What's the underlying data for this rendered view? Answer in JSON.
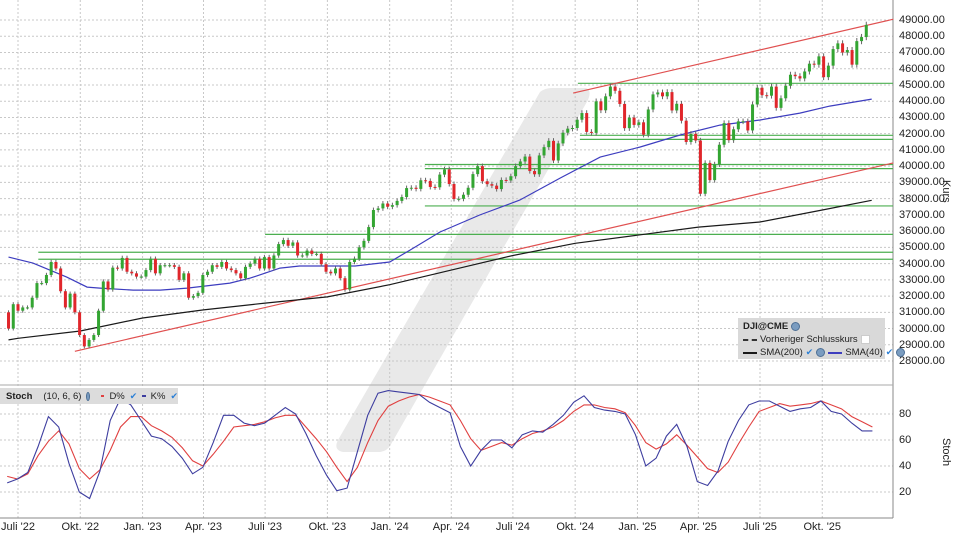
{
  "price_panel": {
    "axis_title": "Kurs",
    "legend": {
      "symbol": "DJI@CME",
      "prev_close_label": "Vorheriger Schlusskurs",
      "sma200_label": "SMA(200)",
      "sma40_label": "SMA(40)"
    }
  },
  "stoch_panel": {
    "title": "Stoch",
    "params": "(10, 6, 6)",
    "d_label": "D%",
    "k_label": "K%",
    "axis_title": "Stoch"
  },
  "colors": {
    "up": "#33a532",
    "down": "#e0262b",
    "wick": "#666666",
    "sma200": "#1a1a1a",
    "sma40": "#3d3dbf",
    "trendline": "#e05050",
    "level": "#4caf50",
    "stoch_k": "#3d3d9f",
    "stoch_d": "#e04040"
  },
  "chart_data": [
    {
      "type": "candlestick",
      "title": "DJI@CME",
      "ylabel": "Kurs",
      "interval": "weekly",
      "first_week": "2022-06-17",
      "start_open": 31000,
      "ylim": [
        26800,
        49600
      ],
      "yticks": [
        "49000.00",
        "48000.00",
        "47000.00",
        "46000.00",
        "45000.00",
        "44000.00",
        "43000.00",
        "42000.00",
        "41000.00",
        "40000.00",
        "39000.00",
        "38000.00",
        "37000.00",
        "36000.00",
        "35000.00",
        "34000.00",
        "33000.00",
        "32000.00",
        "31000.00",
        "30000.00",
        "29000.00",
        "28000.00"
      ],
      "grid": true,
      "closes": [
        30000,
        31500,
        31100,
        31300,
        31300,
        31900,
        32800,
        32800,
        33300,
        34100,
        33700,
        32300,
        31300,
        32150,
        31000,
        29600,
        28900,
        29300,
        29600,
        31100,
        32900,
        32400,
        33750,
        33700,
        34350,
        33500,
        33400,
        33200,
        33200,
        33600,
        34300,
        33400,
        33900,
        33900,
        33900,
        33800,
        33000,
        33400,
        31900,
        32000,
        32200,
        33300,
        33500,
        33900,
        33800,
        34100,
        33700,
        33600,
        33400,
        33100,
        33800,
        34000,
        34300,
        33700,
        34400,
        33700,
        34500,
        35200,
        35450,
        35100,
        35300,
        34500,
        34500,
        34800,
        34600,
        34600,
        33960,
        33500,
        33400,
        33700,
        33100,
        32400,
        34100,
        34300,
        35000,
        35400,
        36250,
        37300,
        37400,
        37700,
        37500,
        37600,
        37860,
        38100,
        38650,
        38670,
        38600,
        39130,
        39090,
        38720,
        38700,
        39480,
        39800,
        38900,
        37980,
        37990,
        38240,
        38670,
        39510,
        40000,
        39070,
        38890,
        38800,
        38590,
        39150,
        39120,
        39380,
        40000,
        40290,
        40590,
        39700,
        39500,
        40660,
        41170,
        41560,
        40350,
        41400,
        42060,
        42310,
        42350,
        42860,
        43270,
        42110,
        42050,
        43990,
        43440,
        44300,
        44900,
        44640,
        43830,
        42340,
        42990,
        42540,
        42700,
        41940,
        43490,
        44420,
        44540,
        44300,
        44560,
        43430,
        43840,
        42800,
        41490,
        41990,
        41580,
        38300,
        40200,
        39140,
        40110,
        41320,
        42650,
        41600,
        42270,
        42760,
        42760,
        42200,
        43800,
        44830,
        44370,
        44340,
        44900,
        43590,
        44180,
        44950,
        45630,
        45540,
        45400,
        45830,
        46310,
        46250,
        46760,
        45480,
        46190,
        47210,
        47560,
        47000,
        47150,
        46250,
        47700,
        47950,
        48700
      ],
      "sma200": [
        [
          "2022-06-17",
          29300
        ],
        [
          "2022-07-01",
          29400
        ],
        [
          "2022-10-01",
          29850
        ],
        [
          "2023-01-01",
          30650
        ],
        [
          "2023-04-01",
          31150
        ],
        [
          "2023-07-01",
          31570
        ],
        [
          "2023-10-01",
          31950
        ],
        [
          "2024-01-01",
          32700
        ],
        [
          "2024-04-01",
          33600
        ],
        [
          "2024-07-01",
          34500
        ],
        [
          "2024-10-01",
          35250
        ],
        [
          "2025-01-01",
          35750
        ],
        [
          "2025-04-01",
          36250
        ],
        [
          "2025-07-01",
          36560
        ],
        [
          "2025-10-01",
          37300
        ],
        [
          "2025-12-13",
          37900
        ]
      ],
      "sma40": [
        [
          "2022-06-17",
          34400
        ],
        [
          "2022-07-23",
          34030
        ],
        [
          "2022-08-17",
          33600
        ],
        [
          "2022-09-11",
          33170
        ],
        [
          "2022-10-11",
          32550
        ],
        [
          "2022-10-30",
          32490
        ],
        [
          "2022-12-18",
          32370
        ],
        [
          "2023-01-27",
          32370
        ],
        [
          "2023-03-08",
          32490
        ],
        [
          "2023-05-10",
          32800
        ],
        [
          "2023-06-09",
          33110
        ],
        [
          "2023-07-23",
          33720
        ],
        [
          "2023-08-21",
          33850
        ],
        [
          "2023-11-11",
          33850
        ],
        [
          "2024-01-01",
          34100
        ],
        [
          "2024-01-31",
          34830
        ],
        [
          "2024-03-15",
          35940
        ],
        [
          "2024-05-13",
          36990
        ],
        [
          "2024-07-11",
          37910
        ],
        [
          "2024-09-09",
          39270
        ],
        [
          "2024-11-07",
          40560
        ],
        [
          "2025-01-05",
          41180
        ],
        [
          "2025-03-05",
          41920
        ],
        [
          "2025-05-03",
          42530
        ],
        [
          "2025-07-01",
          42840
        ],
        [
          "2025-08-29",
          43270
        ],
        [
          "2025-10-12",
          43700
        ],
        [
          "2025-12-13",
          44130
        ]
      ],
      "horizontal_levels": [
        {
          "value": 45100,
          "from": "2024-10-05"
        },
        {
          "value": 41900,
          "from": "2024-10-08"
        },
        {
          "value": 41650,
          "from": "2024-10-08"
        },
        {
          "value": 40100,
          "from": "2024-02-22"
        },
        {
          "value": 39850,
          "from": "2024-02-22"
        },
        {
          "value": 37550,
          "from": "2024-02-22"
        },
        {
          "value": 35800,
          "from": "2023-07-01"
        },
        {
          "value": 34700,
          "from": "2022-07-31"
        },
        {
          "value": 34270,
          "from": "2022-07-31"
        }
      ],
      "trendlines": [
        {
          "from": [
            "2022-09-23",
            28600
          ],
          "to": [
            "2026-01-14",
            40200
          ]
        },
        {
          "from": [
            "2024-09-28",
            44500
          ],
          "to": [
            "2026-01-14",
            49050
          ]
        }
      ]
    },
    {
      "type": "line",
      "title": "Stoch (10, 6, 6)",
      "ylabel": "Stoch",
      "ylim": [
        0,
        100
      ],
      "yticks": [
        "80",
        "60",
        "40",
        "20"
      ],
      "start": "2022-06-15",
      "interval": "semi-monthly",
      "series": [
        {
          "name": "K%",
          "values": [
            27,
            30,
            35,
            55,
            78,
            70,
            42,
            20,
            15,
            36,
            75,
            92,
            87,
            75,
            63,
            61,
            55,
            46,
            34,
            39,
            58,
            79,
            79,
            73,
            71,
            73,
            79,
            85,
            80,
            65,
            48,
            33,
            21,
            23,
            51,
            79,
            96,
            98,
            97,
            96,
            95,
            89,
            85,
            81,
            55,
            40,
            52,
            60,
            60,
            54,
            64,
            67,
            66,
            72,
            79,
            89,
            94,
            85,
            83,
            82,
            80,
            64,
            40,
            46,
            63,
            72,
            55,
            28,
            25,
            36,
            59,
            75,
            87,
            90,
            90,
            86,
            82,
            84,
            85,
            90,
            82,
            80,
            73,
            67,
            67
          ]
        },
        {
          "name": "D%",
          "values": [
            32,
            30,
            34,
            48,
            59,
            67,
            57,
            38,
            30,
            37,
            52,
            70,
            78,
            78,
            71,
            67,
            62,
            54,
            44,
            40,
            49,
            59,
            70,
            71,
            72,
            74,
            77,
            79,
            79,
            70,
            61,
            51,
            39,
            28,
            39,
            58,
            75,
            86,
            90,
            93,
            95,
            93,
            90,
            87,
            75,
            61,
            52,
            55,
            58,
            56,
            61,
            65,
            67,
            70,
            75,
            82,
            87,
            87,
            85,
            84,
            81,
            71,
            58,
            53,
            57,
            64,
            56,
            47,
            38,
            35,
            43,
            57,
            70,
            82,
            85,
            88,
            86,
            87,
            88,
            90,
            87,
            84,
            78,
            74,
            70
          ]
        }
      ]
    }
  ],
  "x_axis": {
    "ticks": [
      {
        "label": "Juli '22",
        "date": "2022-07-01"
      },
      {
        "label": "Okt. '22",
        "date": "2022-10-01"
      },
      {
        "label": "Jan. '23",
        "date": "2023-01-01"
      },
      {
        "label": "Apr. '23",
        "date": "2023-04-01"
      },
      {
        "label": "Juli '23",
        "date": "2023-07-01"
      },
      {
        "label": "Okt. '23",
        "date": "2023-10-01"
      },
      {
        "label": "Jan. '24",
        "date": "2024-01-01"
      },
      {
        "label": "Apr. '24",
        "date": "2024-04-01"
      },
      {
        "label": "Juli '24",
        "date": "2024-07-01"
      },
      {
        "label": "Okt. '24",
        "date": "2024-10-01"
      },
      {
        "label": "Jan. '25",
        "date": "2025-01-01"
      },
      {
        "label": "Apr. '25",
        "date": "2025-04-01"
      },
      {
        "label": "Juli '25",
        "date": "2025-07-01"
      },
      {
        "label": "Okt. '25",
        "date": "2025-10-01"
      }
    ]
  }
}
